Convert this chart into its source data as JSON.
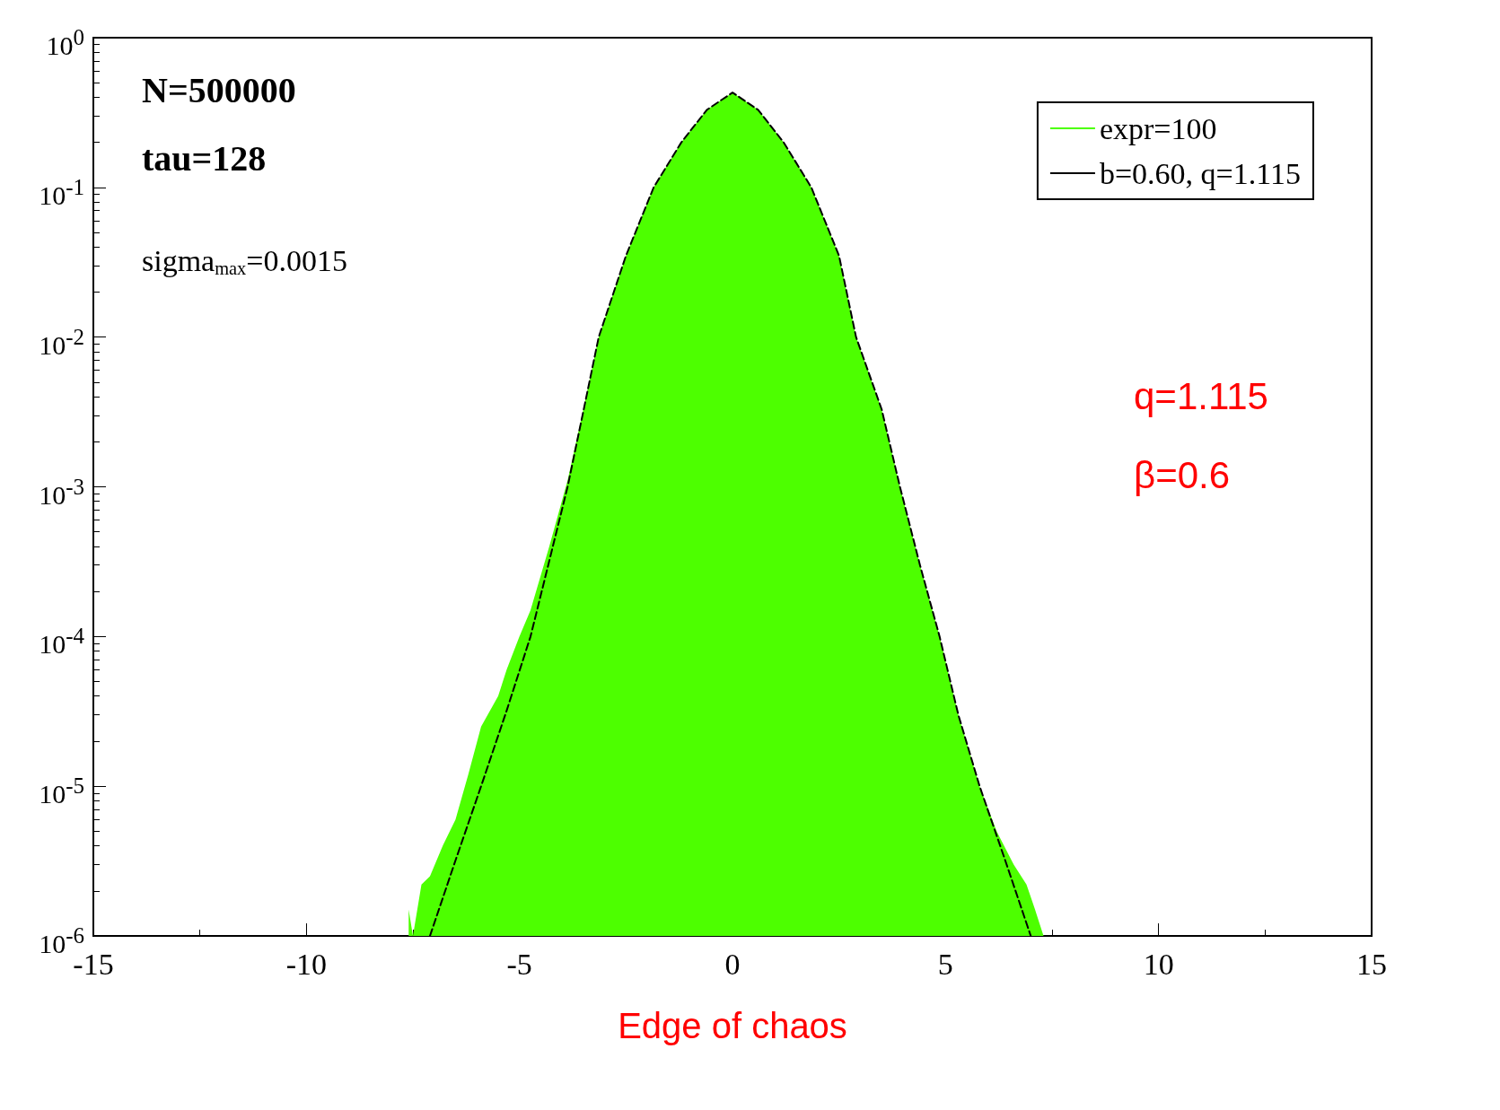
{
  "chart_data": {
    "type": "area",
    "xlabel": "Edge of chaos",
    "log": "y",
    "grid": false,
    "legend": "top right",
    "marker": "none",
    "xlim": [
      -15,
      15
    ],
    "xticks": [
      -15,
      -10,
      -5,
      0,
      5,
      10,
      15
    ],
    "ylim": [
      1e-06,
      1
    ],
    "yticks": [
      {
        "value": 1e-06,
        "label": "10$^{-6}$"
      },
      {
        "value": 1e-05,
        "label": "10$^{-5}$"
      },
      {
        "value": 0.0001,
        "label": "10$^{-4}$"
      },
      {
        "value": 0.001,
        "label": "10$^{-3}$"
      },
      {
        "value": 0.01,
        "label": "10$^{-2}$"
      },
      {
        "value": 0.1,
        "label": "10$^{-1}$"
      },
      {
        "value": 1,
        "label": "10$^{0}$"
      }
    ],
    "annotations": [
      "N=500000",
      "tau=128",
      "sigma$_{max}$=0.0015",
      "q=1.115",
      "β=0.6"
    ],
    "series": [
      {
        "name": "expr=100",
        "color": "#4dff00",
        "x": [
          -7.6,
          -7.5,
          -7.3,
          -7.1,
          -6.8,
          -6.5,
          -6.2,
          -5.9,
          -5.5,
          -5.3,
          -5,
          -4.74,
          -4.3,
          -3.87,
          -3.5,
          -3.14,
          -2.5,
          -1.85,
          -1.2,
          -0.6,
          0,
          0.6,
          1.2,
          1.85,
          2.5,
          2.9,
          3.5,
          3.93,
          4.4,
          4.86,
          5.3,
          5.8,
          6.2,
          6.6,
          6.9,
          7.1,
          7.3
        ],
        "values": [
          1.5e-06,
          1e-06,
          2.2e-06,
          2.5e-06,
          4e-06,
          6e-06,
          1.2e-05,
          2.5e-05,
          4e-05,
          6e-05,
          0.0001,
          0.00015,
          0.0004,
          0.0011,
          0.0033,
          0.01,
          0.035,
          0.1,
          0.2,
          0.33,
          0.43,
          0.33,
          0.2,
          0.1,
          0.035,
          0.01,
          0.0033,
          0.001,
          0.0003,
          0.0001,
          3e-05,
          1e-05,
          5e-06,
          3e-06,
          2.2e-06,
          1.5e-06,
          1e-06
        ]
      },
      {
        "name": "b=0.60, q=1.115",
        "type": "line",
        "line_style": "dashed",
        "color": "#000000",
        "x": [
          -7.1,
          -6.5,
          -5.9,
          -5.3,
          -4.74,
          -4.3,
          -3.87,
          -3.5,
          -3.14,
          -2.5,
          -1.85,
          -1.2,
          -0.6,
          0,
          0.6,
          1.2,
          1.85,
          2.5,
          2.9,
          3.5,
          3.93,
          4.4,
          4.86,
          5.3,
          5.8,
          6.4,
          7.0
        ],
        "values": [
          1e-06,
          3.2e-06,
          1e-05,
          3.2e-05,
          0.0001,
          0.00032,
          0.001,
          0.0032,
          0.01,
          0.035,
          0.1,
          0.2,
          0.33,
          0.43,
          0.33,
          0.2,
          0.1,
          0.035,
          0.01,
          0.0033,
          0.001,
          0.0003,
          0.0001,
          3e-05,
          1e-05,
          3.2e-06,
          1e-06
        ]
      }
    ]
  }
}
